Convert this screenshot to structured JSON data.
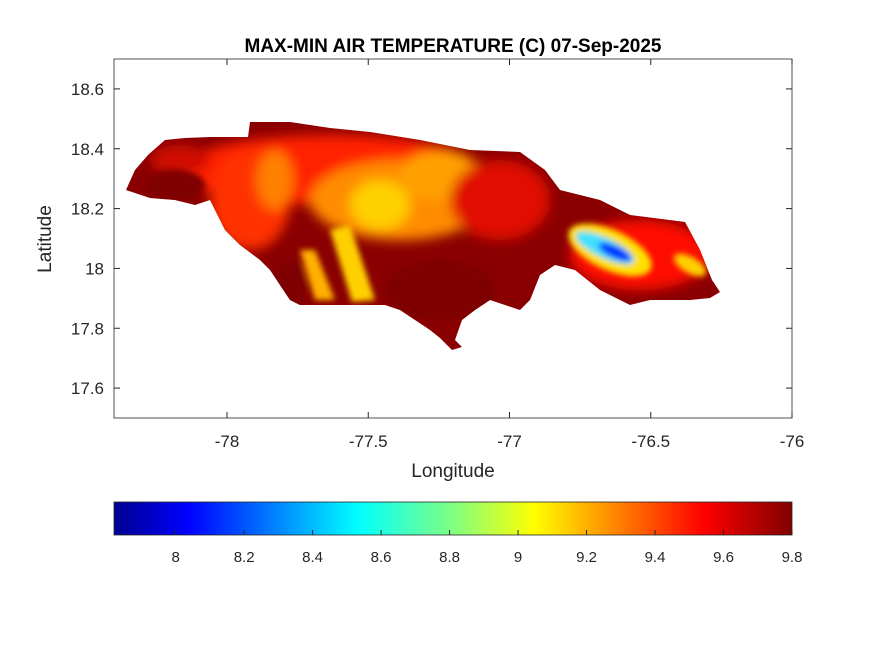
{
  "chart_data": {
    "type": "heatmap",
    "title": "MAX-MIN AIR TEMPERATURE (C) 07-Sep-2025",
    "xlabel": "Longitude",
    "ylabel": "Latitude",
    "xlim": [
      -78.4,
      -76
    ],
    "ylim": [
      17.5,
      18.7
    ],
    "xticks": [
      -78,
      -77.5,
      -77,
      -76.5,
      -76
    ],
    "xtick_labels": [
      "-78",
      "-77.5",
      "-77",
      "-76.5",
      "-76"
    ],
    "yticks": [
      17.6,
      17.8,
      18,
      18.2,
      18.4,
      18.6
    ],
    "ytick_labels": [
      "17.6",
      "17.8",
      "18",
      "18.2",
      "18.4",
      "18.6"
    ],
    "grid": false,
    "colormap": "jet",
    "colorbar": {
      "location": "bottom",
      "clim": [
        7.82,
        9.8
      ],
      "ticks": [
        8,
        8.2,
        8.4,
        8.6,
        8.8,
        9,
        9.2,
        9.4,
        9.6,
        9.8
      ],
      "tick_labels": [
        "8",
        "8.2",
        "8.4",
        "8.6",
        "8.8",
        "9",
        "9.2",
        "9.4",
        "9.6",
        "9.8"
      ]
    },
    "notable_regions": [
      {
        "lon": -76.6,
        "lat": 18.05,
        "value": 7.9
      },
      {
        "lon": -77.5,
        "lat": 18.2,
        "value": 9.0
      },
      {
        "lon": -77.2,
        "lat": 17.85,
        "value": 9.8
      },
      {
        "lon": -78.2,
        "lat": 18.25,
        "value": 9.8
      }
    ],
    "colors": {
      "low": "#00008f",
      "mid": "#ffff00",
      "high": "#800000"
    }
  }
}
